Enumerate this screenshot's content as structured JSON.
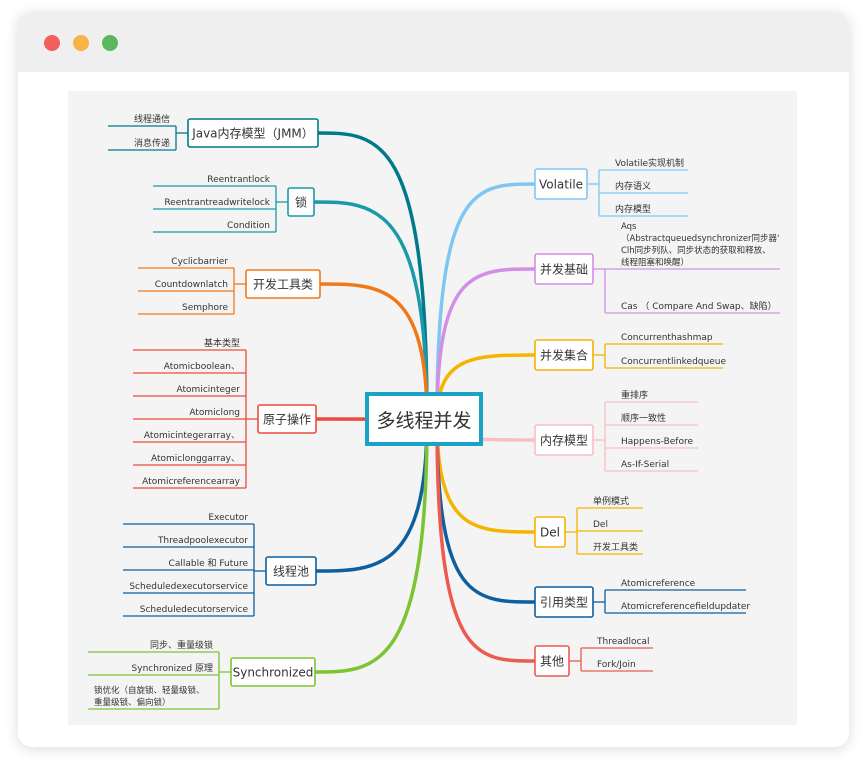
{
  "window": {
    "controls": [
      {
        "name": "close-dot",
        "color": "#f25f5c"
      },
      {
        "name": "minimize-dot",
        "color": "#f7b345"
      },
      {
        "name": "maximize-dot",
        "color": "#5cb85c"
      }
    ]
  },
  "mindmap": {
    "center": "多线程并发",
    "left": [
      {
        "label": "Java内存模型（JMM）",
        "color": "#007a8a",
        "children": [
          "线程通信",
          "消息传递"
        ]
      },
      {
        "label": "锁",
        "color": "#1a9aa8",
        "children": [
          "Reentrantlock",
          "Reentrantreadwritelock",
          "Condition"
        ]
      },
      {
        "label": "开发工具类",
        "color": "#f07818",
        "children": [
          "Cyclicbarrier",
          "Countdownlatch",
          "Semphore"
        ]
      },
      {
        "label": "原子操作",
        "color": "#ec4a3e",
        "children": [
          "基本类型",
          "Atomicboolean、",
          "Atomicinteger",
          "Atomiclong",
          "Atomicintegerarray、",
          "Atomiclonggarray、",
          "Atomicreferencearray"
        ]
      },
      {
        "label": "线程池",
        "color": "#0d5fa0",
        "children": [
          "Executor",
          "Threadpoolexecutor",
          "Callable 和 Future",
          "Scheduledexecutorservice",
          "Scheduledecutorservice"
        ]
      },
      {
        "label": "Synchronized",
        "color": "#7cc431",
        "children": [
          "同步、重量级锁",
          "Synchronized 原理",
          "锁优化（自旋锁、轻量级锁、|重量级锁、偏向锁）"
        ]
      }
    ],
    "right": [
      {
        "label": "Volatile",
        "color": "#7fc7f2",
        "children": [
          "Volatile实现机制",
          "内存语义",
          "内存模型"
        ]
      },
      {
        "label": "并发基础",
        "color": "#d58ee6",
        "children": [
          "Aqs|（Abstractqueuedsynchronizer同步器'|Clh同步列队、同步状态的获取和释放、|线程阻塞和唤醒）",
          "Cas （ Compare And Swap、缺陷）"
        ]
      },
      {
        "label": "并发集合",
        "color": "#f5b400",
        "children": [
          "Concurrenthashmap",
          "Concurrentlinkedqueue"
        ]
      },
      {
        "label": "内存模型",
        "color": "#f7bfc4",
        "children": [
          "重排序",
          "顺序一致性",
          "Happens-Before",
          "As-If-Serial"
        ]
      },
      {
        "label": "Del",
        "color": "#f5b400",
        "children": [
          "单例模式",
          "Del",
          "开发工具类"
        ]
      },
      {
        "label": "引用类型",
        "color": "#0d5fa0",
        "children": [
          "Atomicreference",
          "Atomicreferencefieldupdater"
        ]
      },
      {
        "label": "其他",
        "color": "#ec5a50",
        "children": [
          "Threadlocal",
          "Fork/Join"
        ]
      }
    ]
  }
}
